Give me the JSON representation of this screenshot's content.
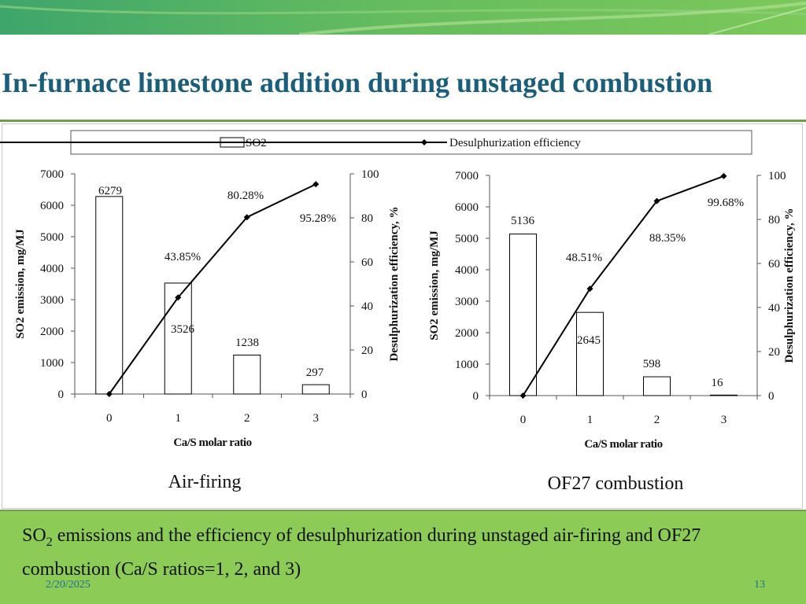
{
  "slide": {
    "title": "In-furnace limestone addition during unstaged combustion",
    "caption_prefix": "SO",
    "caption_sub": "2",
    "caption_rest": " emissions and the efficiency of desulphurization during unstaged air-firing and OF27 combustion (Ca/S ratios=1, 2, and 3)",
    "date": "2/20/2025",
    "page_number": "13",
    "colors": {
      "title": "#1b5e7b",
      "band_green": "#5cb85c",
      "caption_bg": "#8ccb56",
      "footer_text": "#1e6f95"
    }
  },
  "legend": {
    "bar_label": "SO2",
    "line_label": "Desulphurization efficiency",
    "placement": "top"
  },
  "chart_data": [
    {
      "type": "bar+line",
      "subtitle": "Air-firing",
      "categories": [
        "0",
        "1",
        "2",
        "3"
      ],
      "xlabel": "Ca/S molar ratio",
      "ylabel_left": "SO2 emission,  mg/MJ",
      "ylabel_right": "Desulphurization efficiency, %",
      "ylim_left": [
        0,
        7000
      ],
      "ylim_right": [
        0,
        100
      ],
      "yticks_left": [
        0,
        1000,
        2000,
        3000,
        4000,
        5000,
        6000,
        7000
      ],
      "yticks_right": [
        0,
        20,
        40,
        60,
        80,
        100
      ],
      "series": [
        {
          "name": "SO2",
          "kind": "bar",
          "values": [
            6279,
            3526,
            1238,
            297
          ],
          "labels": [
            "6279",
            "3526",
            "1238",
            "297"
          ]
        },
        {
          "name": "Desulphurization efficiency",
          "kind": "line",
          "values": [
            0,
            43.85,
            80.28,
            95.28
          ],
          "labels": [
            "",
            "43.85%",
            "80.28%",
            "95.28%"
          ]
        }
      ]
    },
    {
      "type": "bar+line",
      "subtitle": "OF27 combustion",
      "categories": [
        "0",
        "1",
        "2",
        "3"
      ],
      "xlabel": "Ca/S molar ratio",
      "ylabel_left": "SO2 emission,  mg/MJ",
      "ylabel_right": "Desulphurization efficiency, %",
      "ylim_left": [
        0,
        7000
      ],
      "ylim_right": [
        0,
        100
      ],
      "yticks_left": [
        0,
        1000,
        2000,
        3000,
        4000,
        5000,
        6000,
        7000
      ],
      "yticks_right": [
        0,
        20,
        40,
        60,
        80,
        100
      ],
      "series": [
        {
          "name": "SO2",
          "kind": "bar",
          "values": [
            5136,
            2645,
            598,
            16
          ],
          "labels": [
            "5136",
            "2645",
            "598",
            "16"
          ]
        },
        {
          "name": "Desulphurization efficiency",
          "kind": "line",
          "values": [
            0,
            48.51,
            88.35,
            99.68
          ],
          "labels": [
            "",
            "48.51%",
            "88.35%",
            "99.68%"
          ]
        }
      ]
    }
  ]
}
